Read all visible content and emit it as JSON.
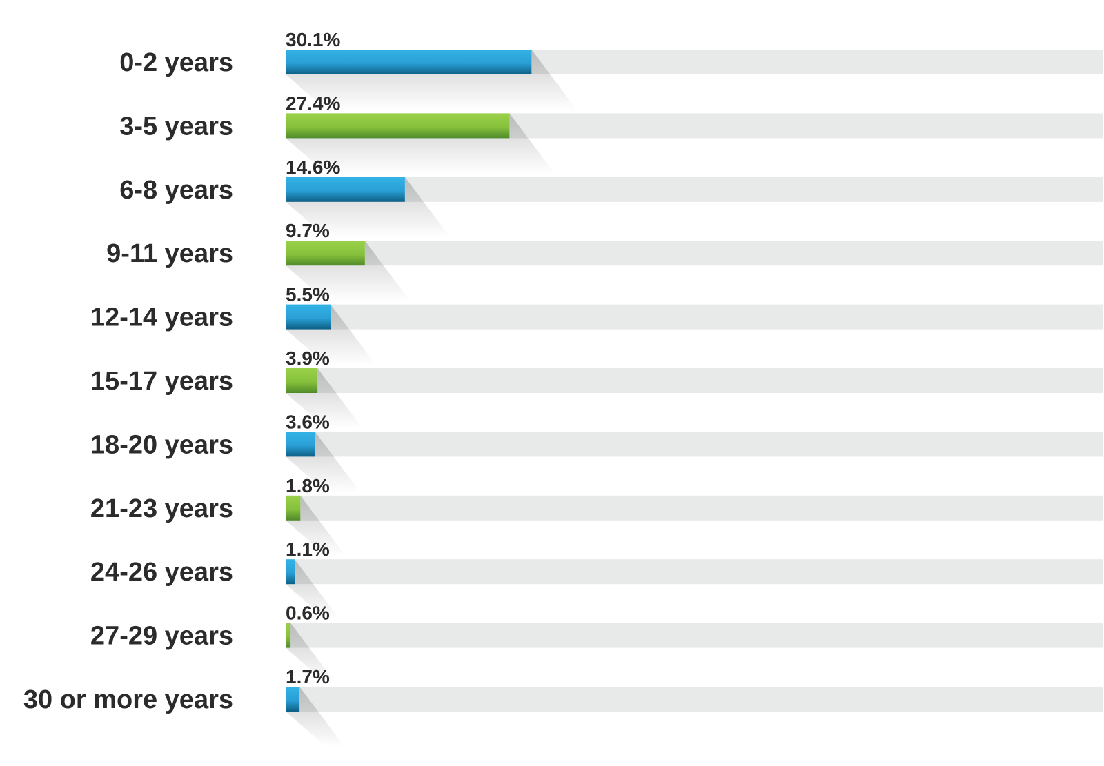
{
  "chart_data": {
    "type": "bar",
    "orientation": "horizontal",
    "categories": [
      "0-2 years",
      "3-5 years",
      "6-8 years",
      "9-11 years",
      "12-14 years",
      "15-17 years",
      "18-20 years",
      "21-23 years",
      "24-26 years",
      "27-29 years",
      "30 or more years"
    ],
    "values": [
      30.1,
      27.4,
      14.6,
      9.7,
      5.5,
      3.9,
      3.6,
      1.8,
      1.1,
      0.6,
      1.7
    ],
    "value_labels": [
      "30.1%",
      "27.4%",
      "14.6%",
      "9.7%",
      "5.5%",
      "3.9%",
      "3.6%",
      "1.8%",
      "1.1%",
      "0.6%",
      "1.7%"
    ],
    "unit": "%",
    "xlim": [
      0,
      100
    ],
    "grid": false,
    "colors": {
      "blue": "#2ea7dc",
      "blue_dark": "#0e5f85",
      "green": "#8dc63f",
      "green_dark": "#4f8a2a",
      "track": "#e8eaea",
      "text": "#2b2b2b"
    },
    "bar_color_pattern": [
      "blue",
      "green"
    ]
  }
}
